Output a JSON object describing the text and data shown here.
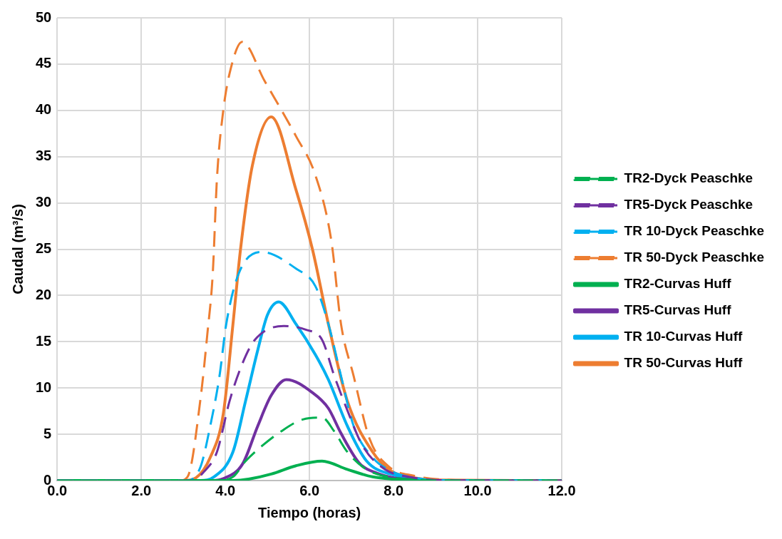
{
  "chart_data": {
    "type": "line",
    "xlabel": "Tiempo (horas)",
    "ylabel": "Caudal (m³/s)",
    "xlim": [
      0,
      12
    ],
    "xticks": [
      {
        "value": 0,
        "label": "0.0"
      },
      {
        "value": 2,
        "label": "2.0"
      },
      {
        "value": 4,
        "label": "4.0"
      },
      {
        "value": 6,
        "label": "6.0"
      },
      {
        "value": 8,
        "label": "8.0"
      },
      {
        "value": 10,
        "label": "10.0"
      },
      {
        "value": 12,
        "label": "12.0"
      }
    ],
    "ylim": [
      0,
      50
    ],
    "yticks": [
      0,
      5,
      10,
      15,
      20,
      25,
      30,
      35,
      40,
      45,
      50
    ],
    "grid": true,
    "legend": "right",
    "marker": "none",
    "series": [
      {
        "name": "TR2-Dyck Peaschke",
        "color": "#00b050",
        "line_style": "dashed",
        "x": [
          0,
          3.8,
          4.18,
          4.48,
          4.86,
          5.32,
          5.84,
          6.3,
          6.59,
          6.9,
          7.36,
          8,
          8.5,
          9,
          12
        ],
        "values": [
          0,
          0,
          0.4,
          2.1,
          3.7,
          5.3,
          6.6,
          6.8,
          5.3,
          3.1,
          1.2,
          0.3,
          0.1,
          0,
          0
        ]
      },
      {
        "name": "TR5-Dyck Peaschke",
        "color": "#7030a0",
        "line_style": "dashed",
        "x": [
          0,
          3.2,
          3.5,
          3.8,
          4.1,
          4.41,
          4.7,
          5.39,
          5.91,
          6.3,
          6.59,
          6.9,
          7.27,
          7.8,
          8.5,
          9,
          12
        ],
        "values": [
          0,
          0,
          1,
          3.1,
          8.6,
          12.7,
          15.2,
          16.7,
          16.3,
          15.2,
          11.3,
          7.6,
          3.7,
          1.2,
          0.3,
          0.05,
          0
        ]
      },
      {
        "name": "TR 10-Dyck Peaschke",
        "color": "#00b0f0",
        "line_style": "dashed",
        "x": [
          0,
          3.1,
          3.41,
          3.64,
          3.86,
          4.02,
          4.32,
          4.86,
          5.68,
          6.14,
          6.45,
          6.75,
          7.05,
          7.5,
          8,
          8.5,
          9,
          12
        ],
        "values": [
          0,
          0,
          1.5,
          5.9,
          11.3,
          16.9,
          22.4,
          24.7,
          22.9,
          21,
          16.9,
          11.3,
          5.9,
          2.5,
          0.9,
          0.3,
          0.05,
          0
        ]
      },
      {
        "name": "TR 50-Dyck Peaschke",
        "color": "#ed7d31",
        "line_style": "dashed",
        "x": [
          0,
          2.9,
          3.1,
          3.41,
          3.57,
          3.7,
          3.8,
          3.95,
          4.1,
          4.4,
          4.93,
          5.68,
          6.14,
          6.52,
          6.75,
          7.05,
          7.43,
          7.89,
          8.5,
          9.2,
          10,
          12
        ],
        "values": [
          0,
          0,
          0.4,
          8.9,
          15.8,
          22.4,
          32.7,
          40,
          44,
          47.4,
          43.2,
          37.2,
          33,
          25.9,
          16.9,
          11.3,
          4.5,
          1.5,
          0.5,
          0.1,
          0,
          0
        ]
      },
      {
        "name": "TR2-Curvas Huff",
        "color": "#00b050",
        "line_style": "solid",
        "x": [
          0,
          4.2,
          4.55,
          5.09,
          5.68,
          6.3,
          6.9,
          7.5,
          8,
          8.5,
          9,
          12
        ],
        "values": [
          0,
          0,
          0.15,
          0.7,
          1.6,
          2.1,
          1.2,
          0.4,
          0.15,
          0.05,
          0,
          0
        ]
      },
      {
        "name": "TR5-Curvas Huff",
        "color": "#7030a0",
        "line_style": "solid",
        "x": [
          0,
          3.7,
          3.95,
          4.41,
          4.77,
          5.09,
          5.45,
          6.07,
          6.45,
          6.75,
          7.2,
          7.6,
          8,
          8.5,
          9,
          12
        ],
        "values": [
          0,
          0,
          0.2,
          1.8,
          5.9,
          9.2,
          10.9,
          9.5,
          7.8,
          5.1,
          1.8,
          0.8,
          0.3,
          0.1,
          0,
          0
        ]
      },
      {
        "name": "TR 10-Curvas Huff",
        "color": "#00b0f0",
        "line_style": "solid",
        "x": [
          0,
          3.4,
          3.73,
          4.18,
          4.48,
          4.77,
          5,
          5.27,
          5.68,
          6.14,
          6.45,
          6.9,
          7.36,
          8,
          8.5,
          9,
          12
        ],
        "values": [
          0,
          0,
          0.4,
          3.1,
          8.6,
          14.1,
          17.9,
          19.3,
          16.9,
          13.6,
          10.9,
          5.9,
          2.1,
          0.6,
          0.2,
          0,
          0
        ]
      },
      {
        "name": "TR 50-Curvas Huff",
        "color": "#ed7d31",
        "line_style": "solid",
        "x": [
          0,
          3,
          3.3,
          3.64,
          3.95,
          4.18,
          4.36,
          4.64,
          5.09,
          5.68,
          6.07,
          6.45,
          6.9,
          7.5,
          7.95,
          8.5,
          9,
          12
        ],
        "values": [
          0,
          0,
          0.3,
          2.5,
          7.2,
          16.9,
          25,
          34,
          39.3,
          31.4,
          25,
          16.9,
          8.6,
          3.1,
          1,
          0.3,
          0.05,
          0
        ]
      }
    ]
  }
}
